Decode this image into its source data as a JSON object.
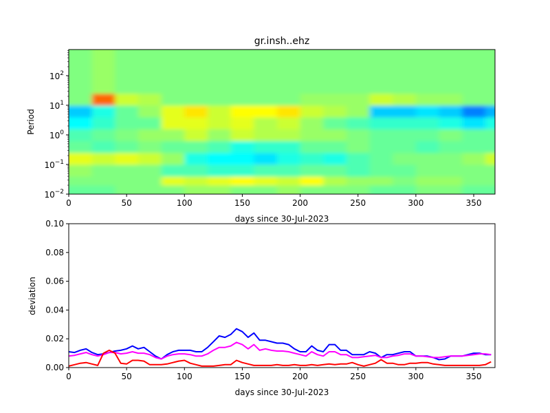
{
  "chart_data": [
    {
      "type": "heatmap",
      "title": "gr.insh..ehz",
      "xlabel": "days since 30-Jul-2023",
      "ylabel": "Period",
      "xlim": [
        0,
        368.4
      ],
      "ylim": [
        0.01,
        760
      ],
      "yscale": "log",
      "xticks": [
        0,
        50,
        100,
        150,
        200,
        250,
        300,
        350
      ],
      "yticks": [
        {
          "base": "10",
          "exp": "−2",
          "value": 0.01
        },
        {
          "base": "10",
          "exp": "−1",
          "value": 0.1
        },
        {
          "base": "10",
          "exp": "0",
          "value": 1
        },
        {
          "base": "10",
          "exp": "1",
          "value": 10
        },
        {
          "base": "10",
          "exp": "2",
          "value": 100
        }
      ],
      "colormap": "jet",
      "value_range": [
        -1,
        1
      ],
      "column_day_step": 20,
      "row_log10_period_edges": [
        -2,
        -1.7,
        -1.4,
        -1.0,
        -0.6,
        -0.2,
        0.2,
        0.6,
        1.0,
        1.4,
        2.88
      ],
      "values_bottom_to_top": [
        [
          -0.05,
          -0.05,
          0,
          0,
          0,
          0.05,
          0.05,
          0,
          0,
          0.05,
          0,
          0,
          0,
          -0.05,
          -0.05,
          0,
          0,
          -0.05,
          -0.05
        ],
        [
          0,
          0,
          0,
          0,
          0.2,
          0.15,
          0.2,
          0.25,
          0.2,
          0.15,
          0.25,
          0.1,
          0.05,
          0.05,
          0,
          0.05,
          0.05,
          0,
          0
        ],
        [
          0.05,
          0,
          0,
          0,
          -0.1,
          -0.1,
          -0.15,
          -0.15,
          -0.1,
          -0.1,
          -0.05,
          -0.05,
          -0.1,
          -0.05,
          -0.05,
          0,
          0,
          0,
          0
        ],
        [
          0.2,
          0.15,
          0.2,
          0.15,
          0.05,
          -0.2,
          -0.25,
          -0.25,
          -0.3,
          -0.2,
          -0.15,
          -0.2,
          -0.1,
          -0.05,
          0,
          0,
          0,
          0.05,
          0.15
        ],
        [
          -0.05,
          -0.1,
          -0.05,
          0,
          -0.05,
          -0.05,
          -0.1,
          -0.2,
          -0.15,
          -0.15,
          -0.05,
          -0.05,
          0,
          -0.05,
          -0.05,
          -0.1,
          -0.05,
          -0.05,
          -0.05
        ],
        [
          -0.1,
          -0.05,
          0,
          0.05,
          0.05,
          0.15,
          0.05,
          0.15,
          0.1,
          0.1,
          0.05,
          0.05,
          0,
          -0.05,
          -0.05,
          -0.05,
          0,
          -0.05,
          -0.05
        ],
        [
          -0.25,
          -0.15,
          -0.05,
          -0.05,
          0.2,
          0.2,
          0.15,
          0.2,
          0.1,
          0.15,
          0.05,
          -0.05,
          -0.1,
          -0.15,
          -0.15,
          -0.15,
          -0.2,
          -0.3,
          -0.2
        ],
        [
          -0.35,
          -0.2,
          -0.05,
          0.05,
          0.2,
          0.3,
          0.15,
          0.25,
          0.25,
          0.3,
          0.15,
          0.1,
          0.05,
          -0.35,
          -0.35,
          -0.3,
          -0.35,
          -0.5,
          -0.4
        ],
        [
          0,
          0.55,
          0.15,
          0.1,
          0,
          0,
          0,
          0,
          0,
          0,
          0.05,
          0.05,
          0.05,
          0.15,
          0.1,
          0.05,
          0.05,
          0,
          0
        ],
        [
          0,
          0.05,
          0,
          0,
          0,
          0,
          0,
          0,
          0,
          0,
          0,
          0,
          0,
          0,
          0,
          0,
          0,
          0,
          0
        ]
      ]
    },
    {
      "type": "line",
      "xlabel": "days since 30-Jul-2023",
      "ylabel": "deviation",
      "xlim": [
        0,
        368.4
      ],
      "ylim": [
        0,
        0.1
      ],
      "xticks": [
        0,
        50,
        100,
        150,
        200,
        250,
        300,
        350
      ],
      "yticks": [
        "0.00",
        "0.02",
        "0.04",
        "0.06",
        "0.08",
        "0.10"
      ],
      "x_start": 0,
      "x_step": 5,
      "series": [
        {
          "name": "blue",
          "color": "#0000ff",
          "values": [
            0.011,
            0.0105,
            0.012,
            0.013,
            0.0105,
            0.009,
            0.0095,
            0.0105,
            0.0115,
            0.012,
            0.013,
            0.015,
            0.013,
            0.014,
            0.011,
            0.008,
            0.006,
            0.009,
            0.011,
            0.012,
            0.012,
            0.012,
            0.011,
            0.011,
            0.014,
            0.018,
            0.022,
            0.021,
            0.023,
            0.027,
            0.025,
            0.021,
            0.024,
            0.019,
            0.019,
            0.018,
            0.017,
            0.017,
            0.016,
            0.013,
            0.011,
            0.011,
            0.015,
            0.012,
            0.011,
            0.016,
            0.016,
            0.012,
            0.012,
            0.009,
            0.009,
            0.009,
            0.011,
            0.01,
            0.007,
            0.009,
            0.009,
            0.01,
            0.011,
            0.011,
            0.008,
            0.008,
            0.008,
            0.007,
            0.0055,
            0.006,
            0.008,
            0.008,
            0.008,
            0.009,
            0.01,
            0.01,
            0.009,
            0.009
          ]
        },
        {
          "name": "magenta",
          "color": "#ff00ff",
          "values": [
            0.008,
            0.0085,
            0.0095,
            0.0105,
            0.009,
            0.008,
            0.009,
            0.0105,
            0.0105,
            0.0095,
            0.01,
            0.011,
            0.01,
            0.01,
            0.009,
            0.007,
            0.006,
            0.008,
            0.009,
            0.0095,
            0.0095,
            0.009,
            0.008,
            0.008,
            0.0095,
            0.012,
            0.014,
            0.014,
            0.015,
            0.0175,
            0.016,
            0.013,
            0.016,
            0.012,
            0.013,
            0.012,
            0.0115,
            0.0115,
            0.011,
            0.01,
            0.009,
            0.008,
            0.011,
            0.009,
            0.008,
            0.011,
            0.011,
            0.009,
            0.009,
            0.007,
            0.007,
            0.0075,
            0.008,
            0.0085,
            0.007,
            0.007,
            0.008,
            0.0085,
            0.0095,
            0.0095,
            0.008,
            0.008,
            0.0075,
            0.007,
            0.007,
            0.0075,
            0.008,
            0.008,
            0.008,
            0.0085,
            0.009,
            0.0095,
            0.0095,
            0.009
          ]
        },
        {
          "name": "red",
          "color": "#ff0000",
          "values": [
            0.001,
            0.002,
            0.003,
            0.0035,
            0.0025,
            0.0015,
            0.01,
            0.012,
            0.01,
            0.003,
            0.0025,
            0.005,
            0.005,
            0.0045,
            0.002,
            0.002,
            0.002,
            0.0025,
            0.0035,
            0.0045,
            0.005,
            0.003,
            0.002,
            0.001,
            0.001,
            0.001,
            0.0015,
            0.002,
            0.002,
            0.005,
            0.0035,
            0.0025,
            0.0015,
            0.0015,
            0.0015,
            0.0015,
            0.002,
            0.0015,
            0.0015,
            0.002,
            0.0015,
            0.0015,
            0.002,
            0.0015,
            0.002,
            0.0025,
            0.002,
            0.0025,
            0.0025,
            0.0035,
            0.002,
            0.001,
            0.002,
            0.003,
            0.0055,
            0.003,
            0.003,
            0.002,
            0.002,
            0.003,
            0.003,
            0.0035,
            0.0035,
            0.0025,
            0.002,
            0.0015,
            0.0015,
            0.0015,
            0.0015,
            0.0015,
            0.0015,
            0.0015,
            0.002,
            0.004
          ]
        }
      ]
    }
  ]
}
